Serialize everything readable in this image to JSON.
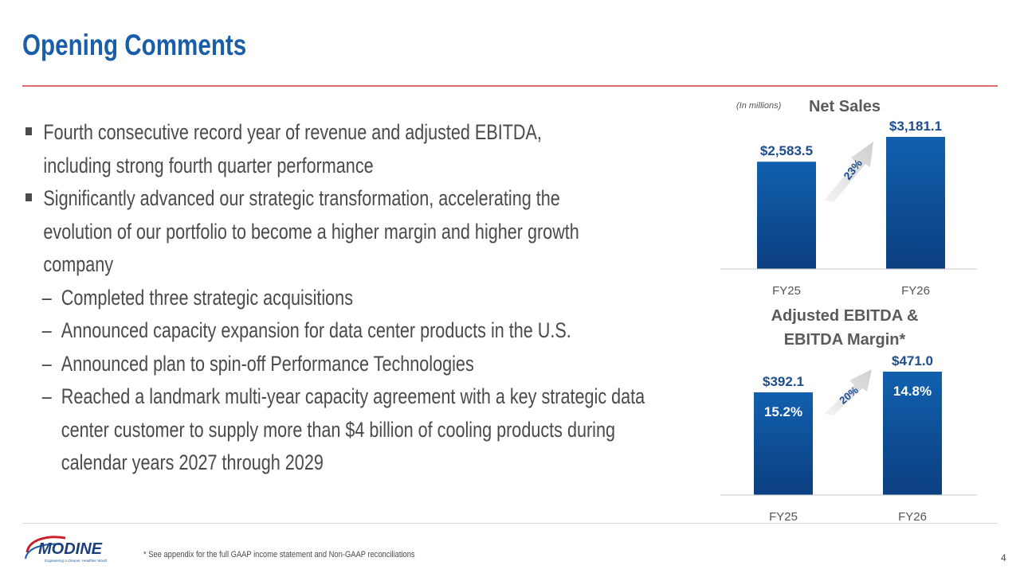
{
  "header": {
    "title": "Opening Comments"
  },
  "bullets": [
    {
      "lines": [
        "Fourth consecutive record year of revenue and adjusted EBITDA,",
        "including strong fourth quarter performance"
      ]
    },
    {
      "lines": [
        "Significantly advanced our strategic transformation, accelerating the",
        "evolution of our portfolio to become a higher margin and higher growth",
        "company"
      ]
    }
  ],
  "sub_bullets": [
    {
      "dash": "–",
      "lines": [
        "Completed three strategic acquisitions"
      ]
    },
    {
      "dash": "–",
      "lines": [
        "Announced capacity expansion for data center products in the U.S."
      ]
    },
    {
      "dash": "–",
      "lines": [
        "Announced plan to spin-off Performance Technologies"
      ]
    },
    {
      "dash": "–",
      "lines": [
        "Reached a landmark multi-year capacity agreement with a key strategic data",
        "center customer to supply more than $4 billion of cooling products during",
        "calendar years 2027 through 2029"
      ]
    }
  ],
  "chart_data": [
    {
      "type": "bar",
      "title": "Net Sales",
      "subtitle": "(In millions)",
      "categories": [
        "FY25",
        "FY26"
      ],
      "values": [
        2583.5,
        3181.1
      ],
      "data_labels": [
        "$2,583.5",
        "$3,181.1"
      ],
      "growth_label": "23%",
      "ylim": [
        0,
        3500
      ]
    },
    {
      "type": "bar",
      "title": "Adjusted EBITDA & EBITDA Margin*",
      "title_lines": [
        "Adjusted EBITDA &",
        "EBITDA Margin*"
      ],
      "categories": [
        "FY25",
        "FY26"
      ],
      "values": [
        392.1,
        471.0
      ],
      "data_labels": [
        "$392.1",
        "$471.0"
      ],
      "margin_labels": [
        "15.2%",
        "14.8%"
      ],
      "margin_values": [
        15.2,
        14.8
      ],
      "growth_label": "20%",
      "ylim": [
        0,
        600
      ]
    }
  ],
  "colors": {
    "title": "#1a5ea8",
    "bar_top": "#1160ae",
    "bar_bottom": "#0b3f80",
    "rule": "#e46b6b",
    "body_text": "#4a4a4a",
    "value_label": "#1e4d8c",
    "arrow": "#d9d9d9"
  },
  "footer": {
    "logo_text": "MODINE",
    "logo_tagline": "Engineering a Cleaner, Healthier World",
    "footnote": "* See appendix for the full GAAP income statement and Non-GAAP reconciliations",
    "page_number": "4"
  }
}
